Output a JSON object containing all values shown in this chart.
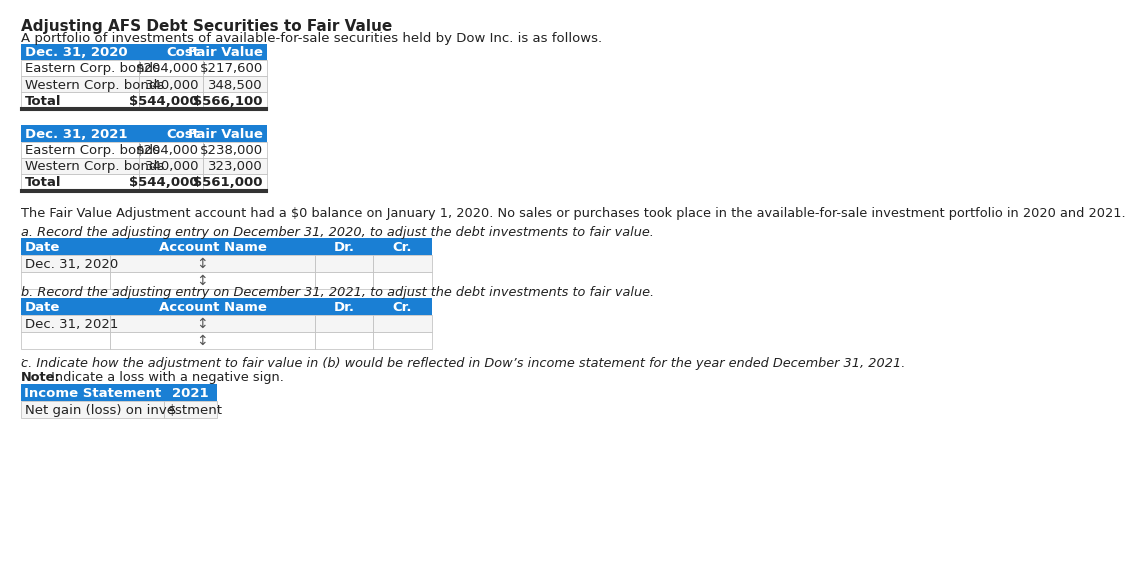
{
  "title": "Adjusting AFS Debt Securities to Fair Value",
  "subtitle": "A portfolio of investments of available-for-sale securities held by Dow Inc. is as follows.",
  "header_color": "#1a7fd4",
  "header_text_color": "#ffffff",
  "table1_header": [
    "Dec. 31, 2020",
    "Cost",
    "Fair Value"
  ],
  "table1_rows": [
    [
      "Eastern Corp. bonds",
      "$204,000",
      "$217,600"
    ],
    [
      "Western Corp. bonds",
      "340,000",
      "348,500"
    ],
    [
      "Total",
      "$544,000",
      "$566,100"
    ]
  ],
  "table2_header": [
    "Dec. 31, 2021",
    "Cost",
    "Fair Value"
  ],
  "table2_rows": [
    [
      "Eastern Corp. bonds",
      "$204,000",
      "$238,000"
    ],
    [
      "Western Corp. bonds",
      "340,000",
      "323,000"
    ],
    [
      "Total",
      "$544,000",
      "$561,000"
    ]
  ],
  "fair_value_note": "The Fair Value Adjustment account had a $0 balance on January 1, 2020. No sales or purchases took place in the available-for-sale investment portfolio in 2020 and 2021.",
  "part_a_label": "a. Record the adjusting entry on December 31, 2020, to adjust the debt investments to fair value.",
  "part_a_table_header": [
    "Date",
    "Account Name",
    "Dr.",
    "Cr."
  ],
  "part_a_date": "Dec. 31, 2020",
  "part_b_label": "b. Record the adjusting entry on December 31, 2021, to adjust the debt investments to fair value.",
  "part_b_table_header": [
    "Date",
    "Account Name",
    "Dr.",
    "Cr."
  ],
  "part_b_date": "Dec. 31, 2021",
  "part_c_label": "c. Indicate how the adjustment to fair value in (b) would be reflected in Dow’s income statement for the year ended December 31, 2021.",
  "part_c_note_bold": "Note:",
  "part_c_note_rest": " Indicate a loss with a negative sign.",
  "income_stmt_header": [
    "Income Statement",
    "2021"
  ],
  "income_stmt_row": [
    "Net gain (loss) on investment",
    "$"
  ],
  "bg_color": "#ffffff",
  "border_color": "#bbbbbb",
  "text_color": "#222222",
  "font_size": 9.5
}
